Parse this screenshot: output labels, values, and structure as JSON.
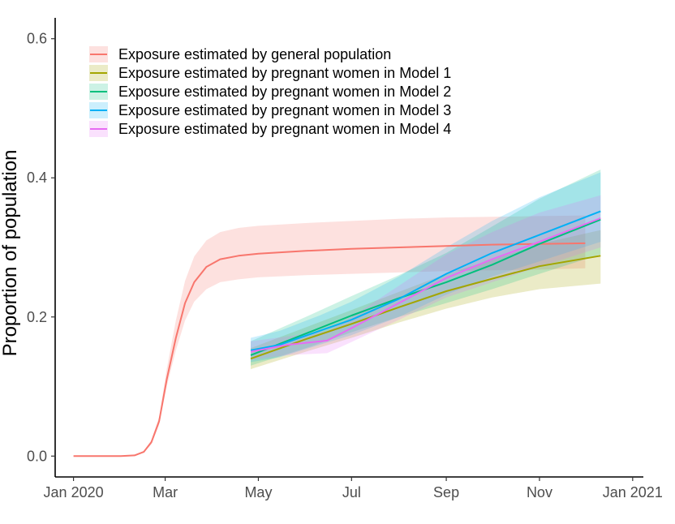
{
  "chart_data": {
    "type": "line",
    "title": "",
    "xlabel": "",
    "ylabel": "Proportion of population",
    "xlim": [
      "2019-12-20",
      "2021-01-08"
    ],
    "ylim": [
      -0.03,
      0.63
    ],
    "x_ticks": [
      {
        "date": "2020-01-01",
        "label": "Jan 2020"
      },
      {
        "date": "2020-03-01",
        "label": "Mar"
      },
      {
        "date": "2020-05-01",
        "label": "May"
      },
      {
        "date": "2020-07-01",
        "label": "Jul"
      },
      {
        "date": "2020-09-01",
        "label": "Sep"
      },
      {
        "date": "2020-11-01",
        "label": "Nov"
      },
      {
        "date": "2021-01-01",
        "label": "Jan 2021"
      }
    ],
    "y_ticks": [
      {
        "value": 0.0,
        "label": "0.0"
      },
      {
        "value": 0.2,
        "label": "0.2"
      },
      {
        "value": 0.4,
        "label": "0.4"
      },
      {
        "value": 0.6,
        "label": "0.6"
      }
    ],
    "grid": false,
    "legend": "top-left",
    "series": [
      {
        "name": "Exposure estimated by general population",
        "color": "#F8766D",
        "band_opacity": 0.22,
        "points": [
          {
            "x": "2020-01-01",
            "y": 0.0,
            "lo": 0.0,
            "hi": 0.0
          },
          {
            "x": "2020-02-01",
            "y": 0.0,
            "lo": 0.0,
            "hi": 0.0
          },
          {
            "x": "2020-02-10",
            "y": 0.001,
            "lo": 0.001,
            "hi": 0.001
          },
          {
            "x": "2020-02-16",
            "y": 0.006,
            "lo": 0.005,
            "hi": 0.007
          },
          {
            "x": "2020-02-21",
            "y": 0.02,
            "lo": 0.017,
            "hi": 0.023
          },
          {
            "x": "2020-02-26",
            "y": 0.05,
            "lo": 0.045,
            "hi": 0.056
          },
          {
            "x": "2020-03-02",
            "y": 0.11,
            "lo": 0.1,
            "hi": 0.125
          },
          {
            "x": "2020-03-08",
            "y": 0.17,
            "lo": 0.152,
            "hi": 0.195
          },
          {
            "x": "2020-03-14",
            "y": 0.22,
            "lo": 0.195,
            "hi": 0.252
          },
          {
            "x": "2020-03-20",
            "y": 0.25,
            "lo": 0.222,
            "hi": 0.287
          },
          {
            "x": "2020-03-28",
            "y": 0.272,
            "lo": 0.24,
            "hi": 0.31
          },
          {
            "x": "2020-04-06",
            "y": 0.283,
            "lo": 0.25,
            "hi": 0.322
          },
          {
            "x": "2020-04-18",
            "y": 0.288,
            "lo": 0.254,
            "hi": 0.328
          },
          {
            "x": "2020-05-01",
            "y": 0.291,
            "lo": 0.257,
            "hi": 0.331
          },
          {
            "x": "2020-06-01",
            "y": 0.295,
            "lo": 0.26,
            "hi": 0.335
          },
          {
            "x": "2020-07-01",
            "y": 0.298,
            "lo": 0.262,
            "hi": 0.338
          },
          {
            "x": "2020-08-01",
            "y": 0.3,
            "lo": 0.264,
            "hi": 0.341
          },
          {
            "x": "2020-09-01",
            "y": 0.302,
            "lo": 0.266,
            "hi": 0.343
          },
          {
            "x": "2020-10-01",
            "y": 0.304,
            "lo": 0.267,
            "hi": 0.344
          },
          {
            "x": "2020-11-01",
            "y": 0.305,
            "lo": 0.268,
            "hi": 0.345
          },
          {
            "x": "2020-12-01",
            "y": 0.306,
            "lo": 0.27,
            "hi": 0.346
          }
        ]
      },
      {
        "name": "Exposure estimated by pregnant women in Model 1",
        "color": "#A3A500",
        "band_opacity": 0.22,
        "points": [
          {
            "x": "2020-04-26",
            "y": 0.14,
            "lo": 0.125,
            "hi": 0.155
          },
          {
            "x": "2020-06-01",
            "y": 0.168,
            "lo": 0.15,
            "hi": 0.185
          },
          {
            "x": "2020-07-01",
            "y": 0.19,
            "lo": 0.17,
            "hi": 0.21
          },
          {
            "x": "2020-08-01",
            "y": 0.214,
            "lo": 0.192,
            "hi": 0.236
          },
          {
            "x": "2020-09-01",
            "y": 0.237,
            "lo": 0.212,
            "hi": 0.262
          },
          {
            "x": "2020-10-01",
            "y": 0.255,
            "lo": 0.228,
            "hi": 0.282
          },
          {
            "x": "2020-11-01",
            "y": 0.273,
            "lo": 0.24,
            "hi": 0.305
          },
          {
            "x": "2020-12-11",
            "y": 0.288,
            "lo": 0.248,
            "hi": 0.325
          }
        ]
      },
      {
        "name": "Exposure estimated by pregnant women in Model 2",
        "color": "#00BF7D",
        "band_opacity": 0.2,
        "points": [
          {
            "x": "2020-04-26",
            "y": 0.145,
            "lo": 0.13,
            "hi": 0.165
          },
          {
            "x": "2020-06-01",
            "y": 0.176,
            "lo": 0.155,
            "hi": 0.2
          },
          {
            "x": "2020-07-01",
            "y": 0.202,
            "lo": 0.178,
            "hi": 0.23
          },
          {
            "x": "2020-08-01",
            "y": 0.227,
            "lo": 0.2,
            "hi": 0.26
          },
          {
            "x": "2020-09-01",
            "y": 0.25,
            "lo": 0.22,
            "hi": 0.292
          },
          {
            "x": "2020-10-01",
            "y": 0.275,
            "lo": 0.24,
            "hi": 0.33
          },
          {
            "x": "2020-11-01",
            "y": 0.305,
            "lo": 0.262,
            "hi": 0.37
          },
          {
            "x": "2020-12-11",
            "y": 0.34,
            "lo": 0.29,
            "hi": 0.412
          }
        ]
      },
      {
        "name": "Exposure estimated by pregnant women in Model 3",
        "color": "#00B0F6",
        "band_opacity": 0.2,
        "points": [
          {
            "x": "2020-04-26",
            "y": 0.152,
            "lo": 0.135,
            "hi": 0.17
          },
          {
            "x": "2020-05-15",
            "y": 0.16,
            "lo": 0.142,
            "hi": 0.18
          },
          {
            "x": "2020-06-10",
            "y": 0.18,
            "lo": 0.16,
            "hi": 0.202
          },
          {
            "x": "2020-07-01",
            "y": 0.196,
            "lo": 0.174,
            "hi": 0.222
          },
          {
            "x": "2020-08-01",
            "y": 0.226,
            "lo": 0.2,
            "hi": 0.258
          },
          {
            "x": "2020-09-01",
            "y": 0.262,
            "lo": 0.232,
            "hi": 0.3
          },
          {
            "x": "2020-10-01",
            "y": 0.292,
            "lo": 0.258,
            "hi": 0.338
          },
          {
            "x": "2020-11-01",
            "y": 0.318,
            "lo": 0.28,
            "hi": 0.372
          },
          {
            "x": "2020-12-11",
            "y": 0.352,
            "lo": 0.308,
            "hi": 0.408
          }
        ]
      },
      {
        "name": "Exposure estimated by pregnant women in Model 4",
        "color": "#E76BF3",
        "band_opacity": 0.2,
        "points": [
          {
            "x": "2020-04-26",
            "y": 0.15,
            "lo": 0.138,
            "hi": 0.165
          },
          {
            "x": "2020-05-20",
            "y": 0.16,
            "lo": 0.145,
            "hi": 0.172
          },
          {
            "x": "2020-06-15",
            "y": 0.166,
            "lo": 0.148,
            "hi": 0.18
          },
          {
            "x": "2020-07-01",
            "y": 0.184,
            "lo": 0.164,
            "hi": 0.2
          },
          {
            "x": "2020-08-01",
            "y": 0.22,
            "lo": 0.196,
            "hi": 0.245
          },
          {
            "x": "2020-09-01",
            "y": 0.256,
            "lo": 0.228,
            "hi": 0.29
          },
          {
            "x": "2020-10-01",
            "y": 0.283,
            "lo": 0.25,
            "hi": 0.322
          },
          {
            "x": "2020-11-01",
            "y": 0.308,
            "lo": 0.272,
            "hi": 0.35
          },
          {
            "x": "2020-12-11",
            "y": 0.342,
            "lo": 0.3,
            "hi": 0.375
          }
        ]
      }
    ]
  }
}
